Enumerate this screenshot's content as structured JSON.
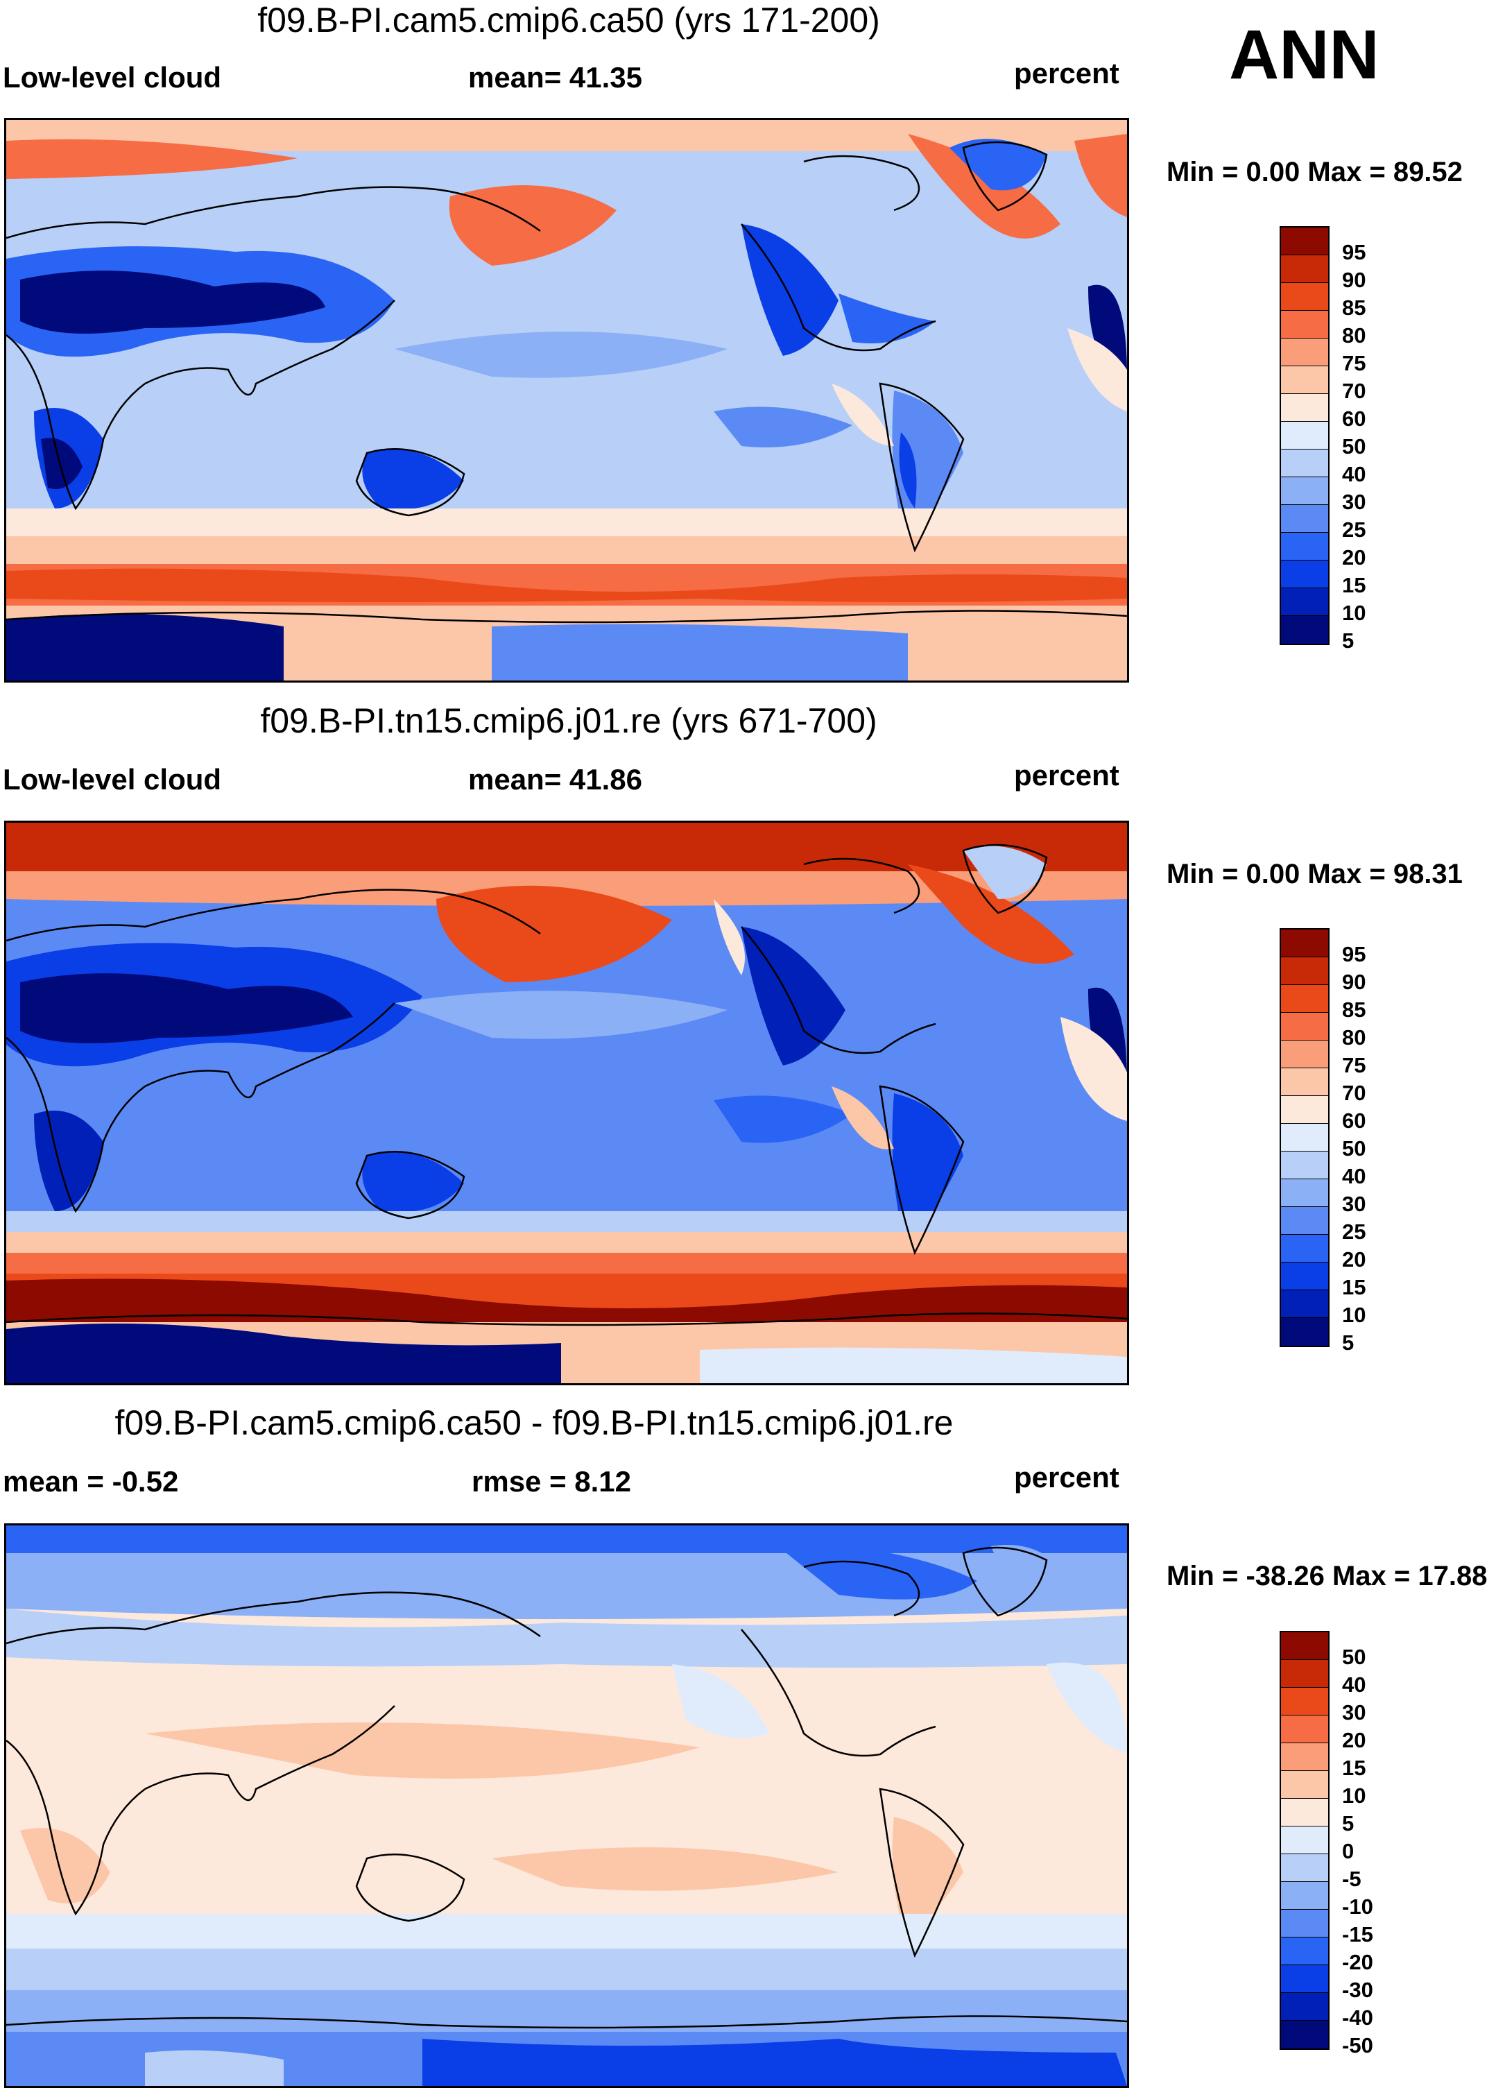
{
  "season": "ANN",
  "palette_abs": [
    "#000a7a",
    "#0020b8",
    "#0a3ee6",
    "#2a64f5",
    "#5c8af5",
    "#8cb0f5",
    "#b8d0f8",
    "#e0ecfb",
    "#fde9dc",
    "#fcc7a8",
    "#fa9e7a",
    "#f66c45",
    "#ea4a1a",
    "#c82a08",
    "#8c0a00"
  ],
  "palette_diff": [
    "#000a7a",
    "#0020b8",
    "#0a3ee6",
    "#2a64f5",
    "#5c8af5",
    "#8cb0f5",
    "#b8d0f8",
    "#e0ecfb",
    "#fde9dc",
    "#fcc7a8",
    "#fa9e7a",
    "#f66c45",
    "#ea4a1a",
    "#c82a08",
    "#8c0a00"
  ],
  "panels": [
    {
      "title": "f09.B-PI.cam5.cmip6.ca50 (yrs 171-200)",
      "left_header": "Low-level cloud",
      "center_header": "mean=  41.35",
      "units": "percent",
      "minmax": "Min =   0.00 Max =  89.52",
      "levels": [
        "95",
        "90",
        "85",
        "80",
        "75",
        "70",
        "60",
        "50",
        "40",
        "30",
        "25",
        "20",
        "15",
        "10",
        "5"
      ]
    },
    {
      "title": "f09.B-PI.tn15.cmip6.j01.re (yrs 671-700)",
      "left_header": "Low-level cloud",
      "center_header": "mean=  41.86",
      "units": "percent",
      "minmax": "Min =   0.00 Max =  98.31",
      "levels": [
        "95",
        "90",
        "85",
        "80",
        "75",
        "70",
        "60",
        "50",
        "40",
        "30",
        "25",
        "20",
        "15",
        "10",
        "5"
      ]
    },
    {
      "title": "f09.B-PI.cam5.cmip6.ca50 - f09.B-PI.tn15.cmip6.j01.re",
      "left_header": "mean =  -0.52",
      "center_header": "rmse =    8.12",
      "units": "percent",
      "minmax": "Min = -38.26 Max =  17.88",
      "levels": [
        "50",
        "40",
        "30",
        "20",
        "15",
        "10",
        "5",
        "0",
        "-5",
        "-10",
        "-15",
        "-20",
        "-30",
        "-40",
        "-50"
      ]
    }
  ]
}
